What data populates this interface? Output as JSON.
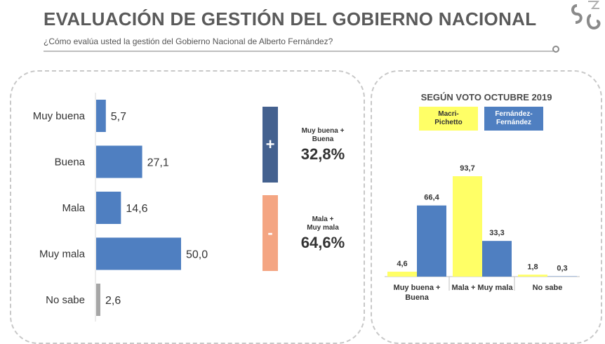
{
  "header": {
    "title": "EVALUACIÓN DE GESTIÓN DEL GOBIERNO NACIONAL",
    "subtitle": "¿Cómo evalúa usted la gestión del Gobierno Nacional de Alberto Fernández?"
  },
  "summary": {
    "positive": {
      "sign": "+",
      "label_line1": "Muy buena +",
      "label_line2": "Buena",
      "value": "32,8%",
      "color": "#44618f"
    },
    "negative": {
      "sign": "-",
      "label_line1": "Mala +",
      "label_line2": "Muy mala",
      "value": "64,6%",
      "color": "#f4a582"
    }
  },
  "chart_data": [
    {
      "type": "bar",
      "orientation": "horizontal",
      "categories": [
        "Muy buena",
        "Buena",
        "Mala",
        "Muy mala",
        "No sabe"
      ],
      "values": [
        5.7,
        27.1,
        14.6,
        50.0,
        2.6
      ],
      "value_labels": [
        "5,7",
        "27,1",
        "14,6",
        "50,0",
        "2,6"
      ],
      "colors": [
        "#4f7fc1",
        "#4f7fc1",
        "#4f7fc1",
        "#4f7fc1",
        "#a6a6a6"
      ],
      "xlim": [
        0,
        50
      ]
    },
    {
      "type": "bar",
      "title": "SEGÚN VOTO OCTUBRE 2019",
      "categories": [
        "Muy buena + Buena",
        "Mala + Muy mala",
        "No sabe"
      ],
      "category_lines": [
        [
          "Muy buena +",
          "Buena"
        ],
        [
          "Mala + Muy mala"
        ],
        [
          "No sabe"
        ]
      ],
      "series": [
        {
          "name": "Macri-Pichetto",
          "name_lines": [
            "Macri-",
            "Pichetto"
          ],
          "values": [
            4.6,
            93.7,
            1.8
          ],
          "value_labels": [
            "4,6",
            "93,7",
            "1,8"
          ],
          "color": "#ffff66"
        },
        {
          "name": "Fernández-Fernández",
          "name_lines": [
            "Fernández-",
            "Fernández"
          ],
          "values": [
            66.4,
            33.3,
            0.3
          ],
          "value_labels": [
            "66,4",
            "33,3",
            "0,3"
          ],
          "color": "#4f7fc1"
        }
      ],
      "ylim": [
        0,
        100
      ],
      "legend": "top"
    }
  ]
}
